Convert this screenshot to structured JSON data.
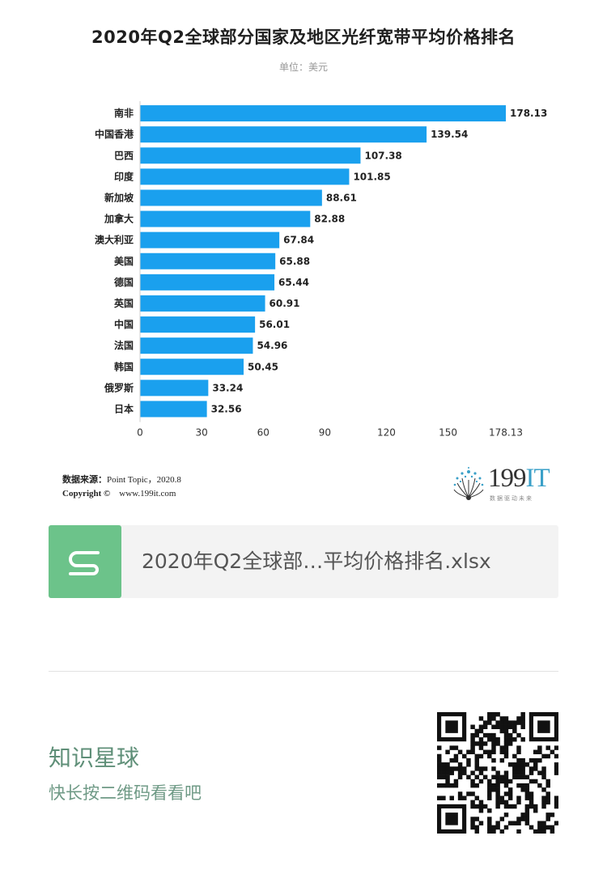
{
  "chart_title": "2020年Q2全球部分国家及地区光纤宽带平均价格排名",
  "chart_subtitle": "单位：美元",
  "chart_data": {
    "type": "bar",
    "orientation": "horizontal",
    "categories": [
      "南非",
      "中国香港",
      "巴西",
      "印度",
      "新加坡",
      "加拿大",
      "澳大利亚",
      "美国",
      "德国",
      "英国",
      "中国",
      "法国",
      "韩国",
      "俄罗斯",
      "日本"
    ],
    "values": [
      178.13,
      139.54,
      107.38,
      101.85,
      88.61,
      82.88,
      67.84,
      65.88,
      65.44,
      60.91,
      56.01,
      54.96,
      50.45,
      33.24,
      32.56
    ],
    "xlim": [
      0,
      178.13
    ],
    "x_ticks": [
      "0",
      "30",
      "60",
      "90",
      "120",
      "150",
      "178.13"
    ],
    "bar_color": "#1aa0ee",
    "grid": false,
    "legend": "none"
  },
  "source": {
    "label": "数据来源：",
    "value": "Point Topic，2020.8",
    "copyright_label": "Copyright ©",
    "copyright_value": "www.199it.com"
  },
  "logo": {
    "text_main": "199",
    "text_accent": "IT",
    "tagline": "数据驱动未来"
  },
  "file_card": {
    "name": "2020年Q2全球部…平均价格排名.xlsx",
    "icon": "spreadsheet-s-icon",
    "icon_color": "#6cc38a"
  },
  "promo": {
    "title": "知识星球",
    "subtitle": "快长按二维码看看吧"
  }
}
